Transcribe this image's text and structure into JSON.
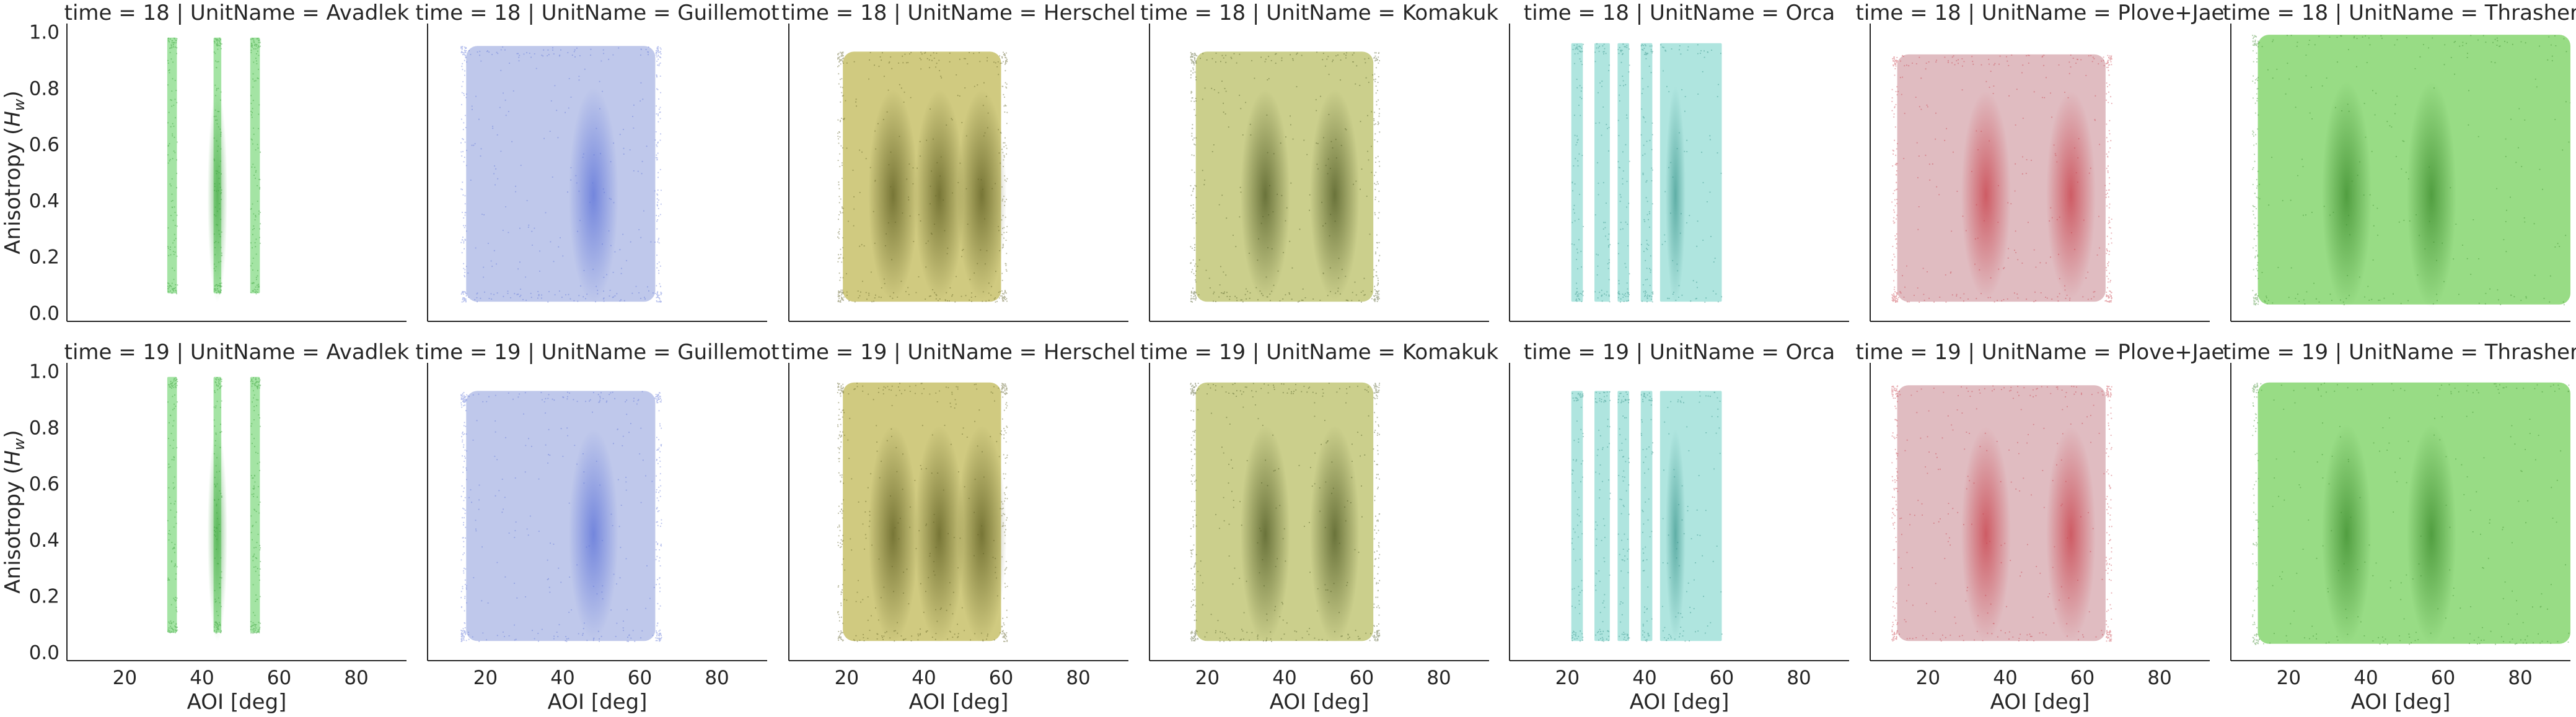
{
  "chart_data": {
    "type": "scatter",
    "facet_row_label": "time",
    "facet_col_label": "UnitName",
    "xlabel": "AOI [deg]",
    "ylabel": "Anisotropy (",
    "ylabel_sym": "H",
    "ylabel_sub": "w",
    "ylabel_end": ")",
    "xlim": [
      5,
      93
    ],
    "ylim": [
      -0.03,
      1.03
    ],
    "x_ticks": [
      20,
      40,
      60,
      80
    ],
    "y_ticks": [
      "0.0",
      "0.2",
      "0.4",
      "0.6",
      "0.8",
      "1.0"
    ],
    "grid": false,
    "panels": [
      {
        "title": "time = 18 | UnitName = Avadlek",
        "time": 18,
        "unit": "Avadlek",
        "color": "#5acd5a",
        "dark": "#2e9a2e",
        "x_range": [
          31,
          55
        ],
        "y_range": [
          0.07,
          0.98
        ],
        "bands": [
          [
            31,
            33.5
          ],
          [
            43,
            45
          ],
          [
            52.5,
            55
          ]
        ],
        "density_centers": [
          44
        ]
      },
      {
        "title": "time = 18 | UnitName = Guillemot",
        "time": 18,
        "unit": "Guillemot",
        "color": "#b4bee8",
        "dark": "#5a70d8",
        "x_range": [
          15,
          64
        ],
        "y_range": [
          0.04,
          0.95
        ],
        "bands": [
          [
            15,
            64
          ]
        ],
        "density_centers": [
          48
        ]
      },
      {
        "title": "time = 18 | UnitName = Herschel",
        "time": 18,
        "unit": "Herschel",
        "color": "#c8c16a",
        "dark": "#5a5a1e",
        "x_range": [
          19,
          60
        ],
        "y_range": [
          0.04,
          0.93
        ],
        "bands": [
          [
            19,
            60
          ]
        ],
        "density_centers": [
          32,
          44,
          55
        ]
      },
      {
        "title": "time = 18 | UnitName = Komakuk",
        "time": 18,
        "unit": "Komakuk",
        "color": "#c2c778",
        "dark": "#4a5520",
        "x_range": [
          17,
          63
        ],
        "y_range": [
          0.04,
          0.93
        ],
        "bands": [
          [
            17,
            63
          ]
        ],
        "density_centers": [
          35,
          53
        ]
      },
      {
        "title": "time = 18 | UnitName = Orca",
        "time": 18,
        "unit": "Orca",
        "color": "#6dcfc4",
        "dark": "#2a8a80",
        "x_range": [
          21,
          60
        ],
        "y_range": [
          0.04,
          0.96
        ],
        "bands": [
          [
            21,
            24
          ],
          [
            27,
            31
          ],
          [
            33,
            36
          ],
          [
            39,
            42
          ],
          [
            44,
            60
          ]
        ],
        "density_centers": [
          48
        ]
      },
      {
        "title": "time = 18 | UnitName = Plove+Jae",
        "time": 18,
        "unit": "Plove+Jae",
        "color": "#dbb0b6",
        "dark": "#c83c46",
        "x_range": [
          12,
          66
        ],
        "y_range": [
          0.04,
          0.92
        ],
        "bands": [
          [
            12,
            66
          ]
        ],
        "density_centers": [
          35,
          57
        ]
      },
      {
        "title": "time = 18 | UnitName = Thrasher",
        "time": 18,
        "unit": "Thrasher",
        "color": "#86d670",
        "dark": "#3a8a2a",
        "x_range": [
          12,
          93
        ],
        "y_range": [
          0.03,
          0.99
        ],
        "bands": [
          [
            12,
            93
          ]
        ],
        "density_centers": [
          35,
          57
        ]
      },
      {
        "title": "time = 19 | UnitName = Avadlek",
        "time": 19,
        "unit": "Avadlek",
        "color": "#5acd5a",
        "dark": "#2e9a2e",
        "x_range": [
          31,
          55
        ],
        "y_range": [
          0.07,
          0.98
        ],
        "bands": [
          [
            31,
            33.5
          ],
          [
            43,
            45
          ],
          [
            52.5,
            55
          ]
        ],
        "density_centers": [
          44
        ]
      },
      {
        "title": "time = 19 | UnitName = Guillemot",
        "time": 19,
        "unit": "Guillemot",
        "color": "#b4bee8",
        "dark": "#5a70d8",
        "x_range": [
          15,
          64
        ],
        "y_range": [
          0.04,
          0.93
        ],
        "bands": [
          [
            15,
            64
          ]
        ],
        "density_centers": [
          48
        ]
      },
      {
        "title": "time = 19 | UnitName = Herschel",
        "time": 19,
        "unit": "Herschel",
        "color": "#c8c16a",
        "dark": "#5a5a1e",
        "x_range": [
          19,
          60
        ],
        "y_range": [
          0.04,
          0.96
        ],
        "bands": [
          [
            19,
            60
          ]
        ],
        "density_centers": [
          32,
          44,
          55
        ]
      },
      {
        "title": "time = 19 | UnitName = Komakuk",
        "time": 19,
        "unit": "Komakuk",
        "color": "#c2c778",
        "dark": "#4a5520",
        "x_range": [
          17,
          63
        ],
        "y_range": [
          0.04,
          0.96
        ],
        "bands": [
          [
            17,
            63
          ]
        ],
        "density_centers": [
          35,
          53
        ]
      },
      {
        "title": "time = 19 | UnitName = Orca",
        "time": 19,
        "unit": "Orca",
        "color": "#6dcfc4",
        "dark": "#2a8a80",
        "x_range": [
          21,
          60
        ],
        "y_range": [
          0.04,
          0.93
        ],
        "bands": [
          [
            21,
            24
          ],
          [
            27,
            31
          ],
          [
            33,
            36
          ],
          [
            39,
            42
          ],
          [
            44,
            60
          ]
        ],
        "density_centers": [
          48
        ]
      },
      {
        "title": "time = 19 | UnitName = Plove+Jae",
        "time": 19,
        "unit": "Plove+Jae",
        "color": "#dbb0b6",
        "dark": "#c83c46",
        "x_range": [
          12,
          66
        ],
        "y_range": [
          0.04,
          0.95
        ],
        "bands": [
          [
            12,
            66
          ]
        ],
        "density_centers": [
          35,
          57
        ]
      },
      {
        "title": "time = 19 | UnitName = Thrasher",
        "time": 19,
        "unit": "Thrasher",
        "color": "#86d670",
        "dark": "#3a8a2a",
        "x_range": [
          12,
          93
        ],
        "y_range": [
          0.03,
          0.96
        ],
        "bands": [
          [
            12,
            93
          ]
        ],
        "density_centers": [
          35,
          57
        ]
      }
    ]
  }
}
